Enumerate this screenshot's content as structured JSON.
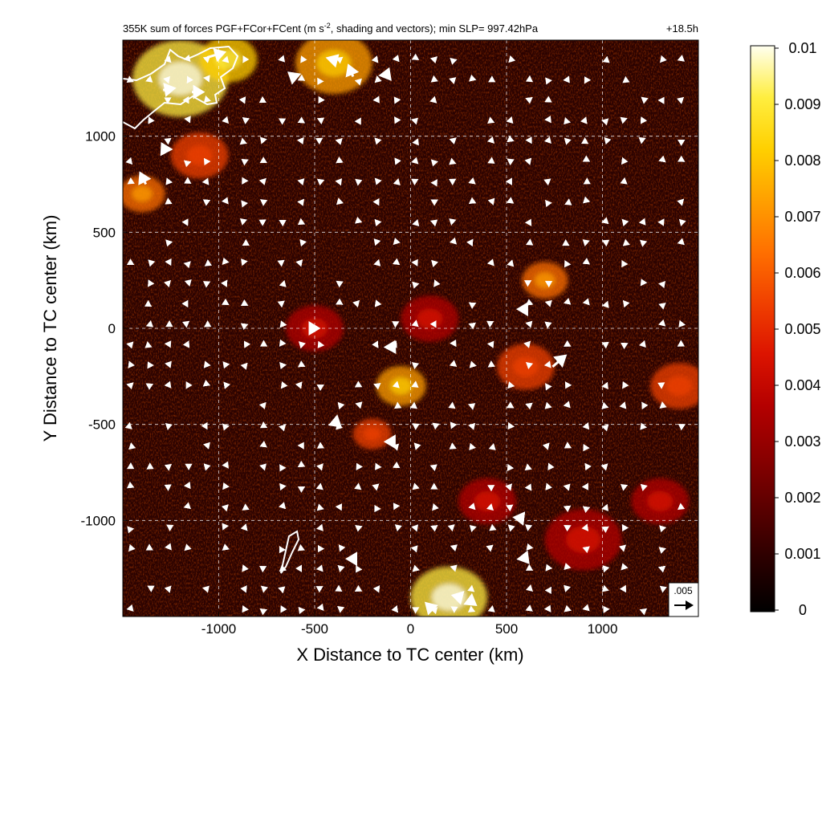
{
  "chart_data": {
    "type": "heatmap",
    "title": "355K sum of forces PGF+FCor+FCent (m s-2, shading and vectors); min SLP= 997.42hPa",
    "title_parts": {
      "pre": "355K sum of forces PGF+FCor+FCent (m s",
      "sup": "-2",
      "post": ", shading and vectors); min SLP= 997.42hPa"
    },
    "time_label": "+18.5h",
    "xlabel": "X Distance to TC center (km)",
    "ylabel": "Y Distance to TC center (km)",
    "xlim": [
      -1500,
      1500
    ],
    "ylim": [
      -1500,
      1500
    ],
    "xticks": [
      -1000,
      -500,
      0,
      500,
      1000
    ],
    "yticks": [
      -1000,
      -500,
      0,
      500,
      1000
    ],
    "grid": true,
    "colorbar": {
      "range": [
        0,
        0.01
      ],
      "ticks": [
        "0.01",
        "0.009",
        "0.008",
        "0.007",
        "0.006",
        "0.005",
        "0.004",
        "0.003",
        "0.002",
        "0.001",
        "0"
      ],
      "colors": [
        "#000000",
        "#2a0000",
        "#5a0000",
        "#8a0000",
        "#b40000",
        "#dc1400",
        "#f04000",
        "#ff7000",
        "#ffa000",
        "#ffd000",
        "#ffee40",
        "#fffff0"
      ]
    },
    "reference_vector": {
      "label": ".005",
      "value": 0.005
    },
    "hotspots": [
      {
        "x": -1200,
        "y": 1300,
        "r": 250,
        "v": 0.009
      },
      {
        "x": -950,
        "y": 1400,
        "r": 150,
        "v": 0.008
      },
      {
        "x": -400,
        "y": 1380,
        "r": 200,
        "v": 0.007
      },
      {
        "x": -1400,
        "y": 700,
        "r": 120,
        "v": 0.006
      },
      {
        "x": -1100,
        "y": 900,
        "r": 150,
        "v": 0.005
      },
      {
        "x": -50,
        "y": -300,
        "r": 130,
        "v": 0.007
      },
      {
        "x": -200,
        "y": -550,
        "r": 100,
        "v": 0.005
      },
      {
        "x": 700,
        "y": 250,
        "r": 120,
        "v": 0.006
      },
      {
        "x": 600,
        "y": -200,
        "r": 150,
        "v": 0.005
      },
      {
        "x": 1400,
        "y": -300,
        "r": 150,
        "v": 0.005
      },
      {
        "x": 200,
        "y": -1400,
        "r": 200,
        "v": 0.009
      },
      {
        "x": 400,
        "y": -900,
        "r": 150,
        "v": 0.004
      },
      {
        "x": 900,
        "y": -1100,
        "r": 200,
        "v": 0.004
      },
      {
        "x": -500,
        "y": 0,
        "r": 150,
        "v": 0.004
      },
      {
        "x": 100,
        "y": 50,
        "r": 150,
        "v": 0.004
      },
      {
        "x": 1300,
        "y": -900,
        "r": 150,
        "v": 0.004
      }
    ],
    "vectors": [
      {
        "x": -1060,
        "y": 1410,
        "u": 0.005,
        "v": 0.0015
      },
      {
        "x": -1140,
        "y": 1230,
        "u": 0.003,
        "v": 0
      },
      {
        "x": -1290,
        "y": 1240,
        "u": 0.003,
        "v": 0.0005
      },
      {
        "x": -1380,
        "y": 750,
        "u": -0.0015,
        "v": 0.003
      },
      {
        "x": -300,
        "y": 1310,
        "u": -0.0012,
        "v": 0.003
      },
      {
        "x": 740,
        "y": -200,
        "u": 0.0035,
        "v": 0.003
      },
      {
        "x": -390,
        "y": -490,
        "u": 0.0012,
        "v": -0.001
      },
      {
        "x": -610,
        "y": 1310,
        "u": -0.0012,
        "v": 0.001
      },
      {
        "x": -1280,
        "y": 930,
        "u": -0.0008,
        "v": 0.0015
      },
      {
        "x": 600,
        "y": 100,
        "u": -0.002,
        "v": 0
      },
      {
        "x": 590,
        "y": -990,
        "u": -0.0025,
        "v": 0.0003
      },
      {
        "x": 590,
        "y": -1190,
        "u": 0.0012,
        "v": -0.0015
      },
      {
        "x": -300,
        "y": -1200,
        "u": -0.0015,
        "v": 0
      },
      {
        "x": -130,
        "y": 1310,
        "u": 0.0008,
        "v": 0.002
      },
      {
        "x": 260,
        "y": -1400,
        "u": -0.002,
        "v": 0.0005
      },
      {
        "x": 110,
        "y": -1460,
        "u": -0.0015,
        "v": 0.0015
      },
      {
        "x": 300,
        "y": -1410,
        "u": 0.002,
        "v": -0.0015
      },
      {
        "x": -100,
        "y": -590,
        "u": -0.0015,
        "v": 0
      },
      {
        "x": -100,
        "y": -100,
        "u": 0.0008,
        "v": 0.0015
      },
      {
        "x": -500,
        "y": 0,
        "u": 0.001,
        "v": 0
      },
      {
        "x": -400,
        "y": 1400,
        "u": 0.001,
        "v": 0.001
      }
    ],
    "vector_field": {
      "x_start": -1460,
      "x_step": 99,
      "y_start": 1400,
      "y_step": -106,
      "scale": 160,
      "max_length": 22
    }
  }
}
